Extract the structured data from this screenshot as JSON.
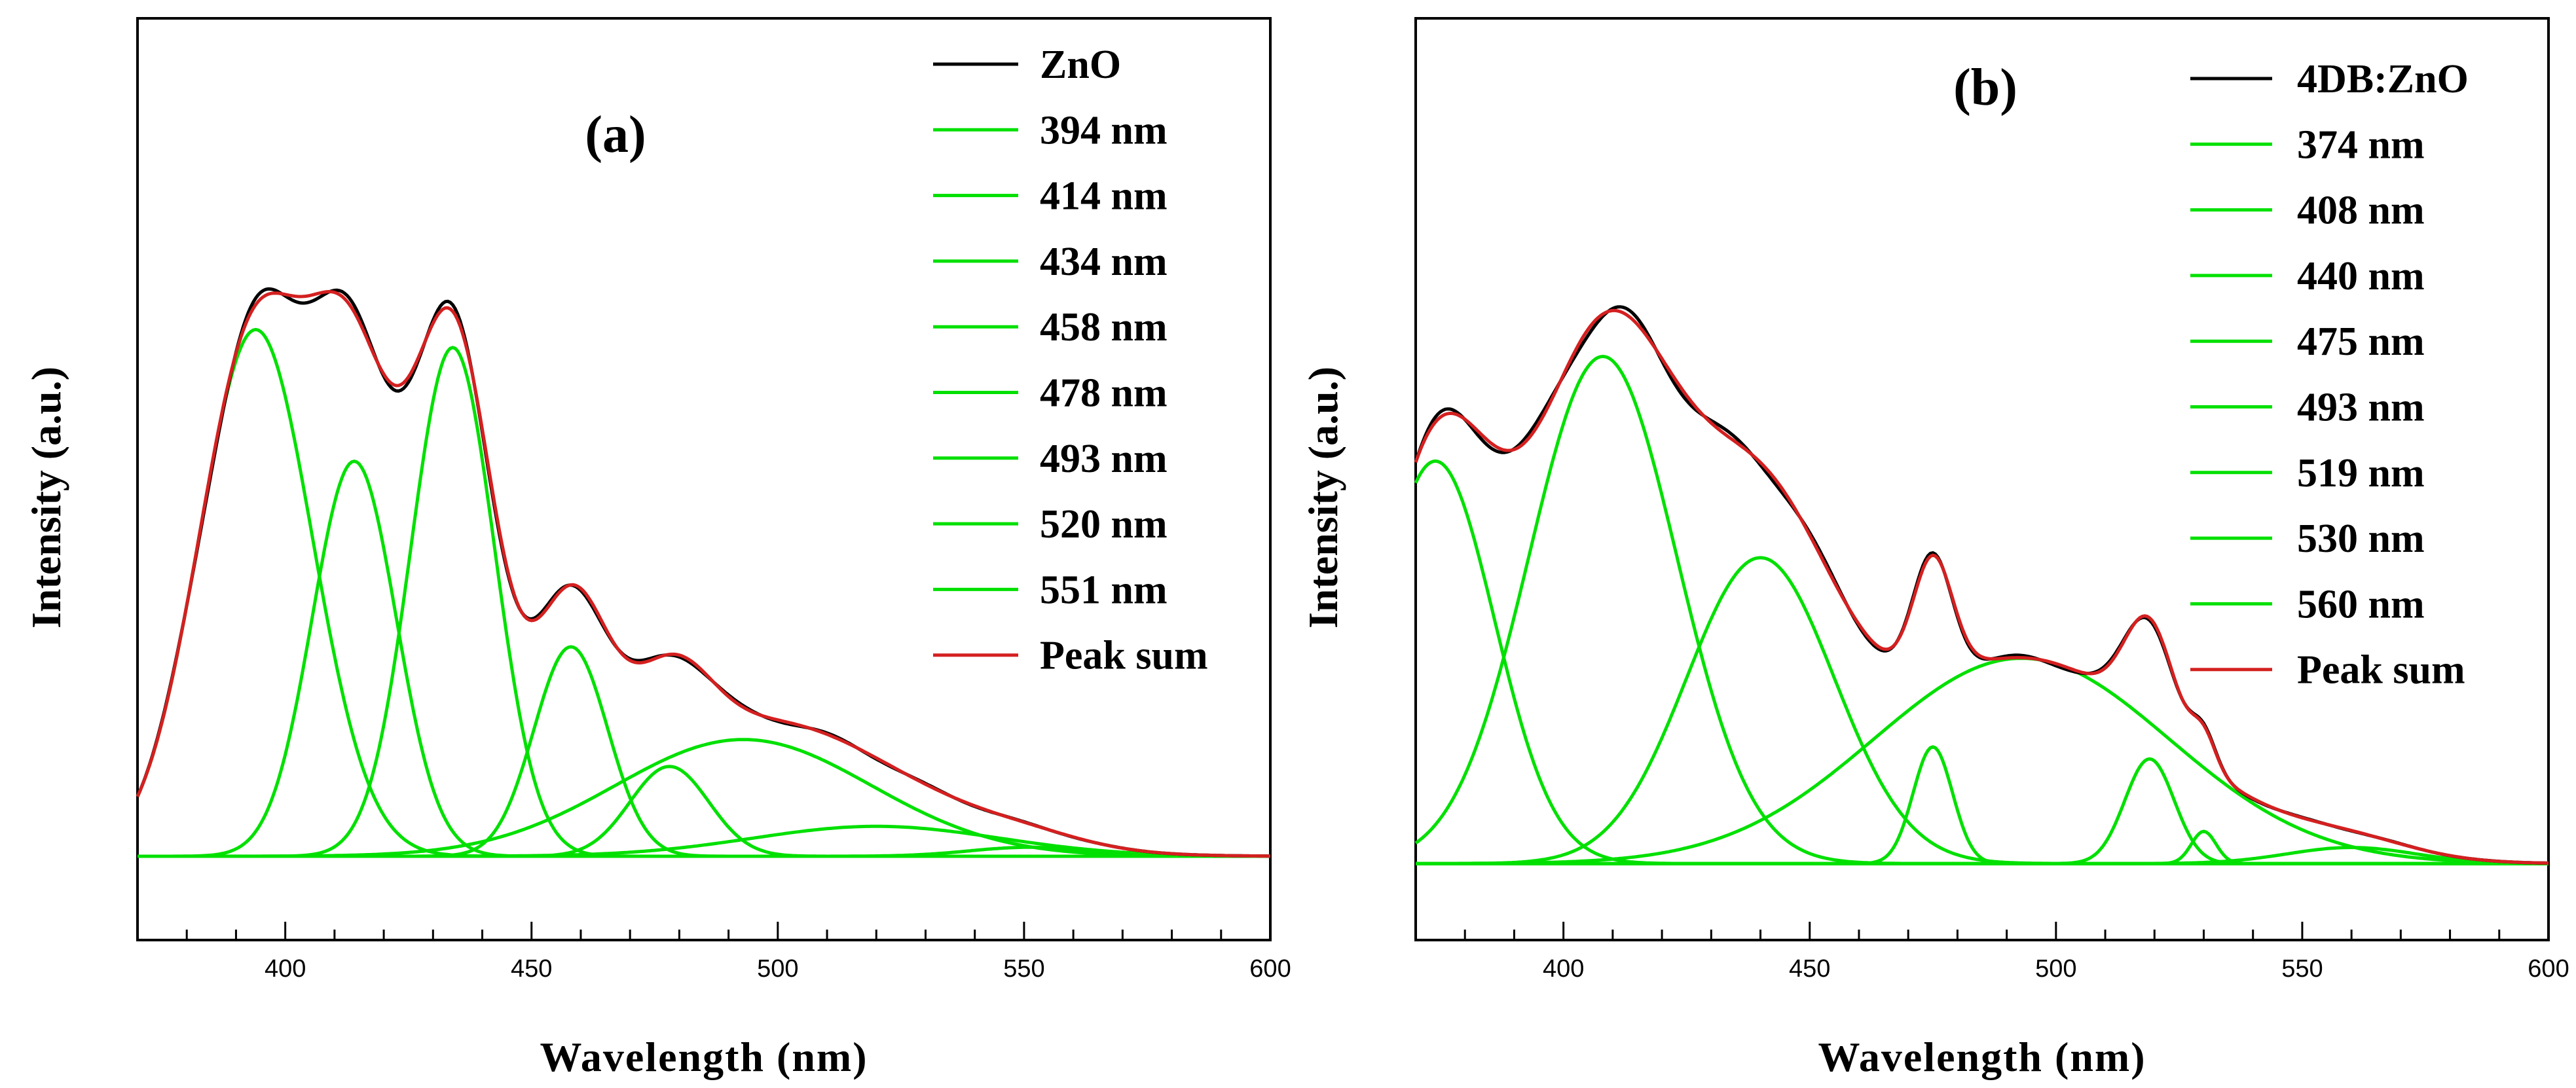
{
  "chart_data": [
    {
      "type": "line",
      "panel_label": "(a)",
      "xlabel": "Wavelength (nm)",
      "ylabel": "Intensity (a.u.)",
      "xlim": [
        370,
        600
      ],
      "ylim": [
        -0.14,
        1.4
      ],
      "xticks": [
        400,
        450,
        500,
        550,
        600
      ],
      "xtick_labels": [
        "400",
        "450",
        "500",
        "550",
        "600"
      ],
      "yticks_shown": false,
      "legend_position": "top-right",
      "colors": {
        "data": "#000000",
        "peak": "#00e000",
        "sum": "#d42020"
      },
      "peaks": [
        {
          "name": "394 nm",
          "center": 394,
          "amplitude": 0.88,
          "sigma": 11.5
        },
        {
          "name": "414 nm",
          "center": 414,
          "amplitude": 0.66,
          "sigma": 8.5
        },
        {
          "name": "434 nm",
          "center": 434,
          "amplitude": 0.85,
          "sigma": 8.5
        },
        {
          "name": "458 nm",
          "center": 458,
          "amplitude": 0.35,
          "sigma": 7.5
        },
        {
          "name": "478 nm",
          "center": 478,
          "amplitude": 0.15,
          "sigma": 8
        },
        {
          "name": "493 nm",
          "center": 493,
          "amplitude": 0.195,
          "sigma": 26
        },
        {
          "name": "520 nm",
          "center": 520,
          "amplitude": 0.05,
          "sigma": 25
        },
        {
          "name": "551 nm",
          "center": 551,
          "amplitude": 0.015,
          "sigma": 12
        }
      ],
      "series": [
        {
          "name": "ZnO",
          "role": "data",
          "color": "#000000"
        },
        {
          "name": "394 nm",
          "role": "peak",
          "color": "#00e000"
        },
        {
          "name": "414 nm",
          "role": "peak",
          "color": "#00e000"
        },
        {
          "name": "434 nm",
          "role": "peak",
          "color": "#00e000"
        },
        {
          "name": "458 nm",
          "role": "peak",
          "color": "#00e000"
        },
        {
          "name": "478 nm",
          "role": "peak",
          "color": "#00e000"
        },
        {
          "name": "493 nm",
          "role": "peak",
          "color": "#00e000"
        },
        {
          "name": "520 nm",
          "role": "peak",
          "color": "#00e000"
        },
        {
          "name": "551 nm",
          "role": "peak",
          "color": "#00e000"
        },
        {
          "name": "Peak sum",
          "role": "sum",
          "color": "#d42020"
        }
      ]
    },
    {
      "type": "line",
      "panel_label": "(b)",
      "xlabel": "Wavelength (nm)",
      "ylabel": "Intensity (a.u.)",
      "xlim": [
        370,
        600
      ],
      "ylim": [
        -0.095,
        1.05
      ],
      "xticks": [
        400,
        450,
        500,
        550,
        600
      ],
      "xtick_labels": [
        "400",
        "450",
        "500",
        "550",
        "600"
      ],
      "yticks_shown": false,
      "legend_position": "top-right",
      "colors": {
        "data": "#000000",
        "peak": "#00e000",
        "sum": "#d42020"
      },
      "peaks": [
        {
          "name": "374 nm",
          "center": 374,
          "amplitude": 0.5,
          "sigma": 12
        },
        {
          "name": "408 nm",
          "center": 408,
          "amplitude": 0.63,
          "sigma": 15
        },
        {
          "name": "440 nm",
          "center": 440,
          "amplitude": 0.38,
          "sigma": 15
        },
        {
          "name": "475 nm",
          "center": 475,
          "amplitude": 0.145,
          "sigma": 4
        },
        {
          "name": "493 nm",
          "center": 493,
          "amplitude": 0.255,
          "sigma": 30
        },
        {
          "name": "519 nm",
          "center": 519,
          "amplitude": 0.13,
          "sigma": 5
        },
        {
          "name": "530 nm",
          "center": 530,
          "amplitude": 0.04,
          "sigma": 2.5
        },
        {
          "name": "560 nm",
          "center": 560,
          "amplitude": 0.02,
          "sigma": 13
        }
      ],
      "series": [
        {
          "name": "4DB:ZnO",
          "role": "data",
          "color": "#000000"
        },
        {
          "name": "374 nm",
          "role": "peak",
          "color": "#00e000"
        },
        {
          "name": "408 nm",
          "role": "peak",
          "color": "#00e000"
        },
        {
          "name": "440 nm",
          "role": "peak",
          "color": "#00e000"
        },
        {
          "name": "475 nm",
          "role": "peak",
          "color": "#00e000"
        },
        {
          "name": "493 nm",
          "role": "peak",
          "color": "#00e000"
        },
        {
          "name": "519 nm",
          "role": "peak",
          "color": "#00e000"
        },
        {
          "name": "530 nm",
          "role": "peak",
          "color": "#00e000"
        },
        {
          "name": "560 nm",
          "role": "peak",
          "color": "#00e000"
        },
        {
          "name": "Peak sum",
          "role": "sum",
          "color": "#d42020"
        }
      ]
    }
  ]
}
